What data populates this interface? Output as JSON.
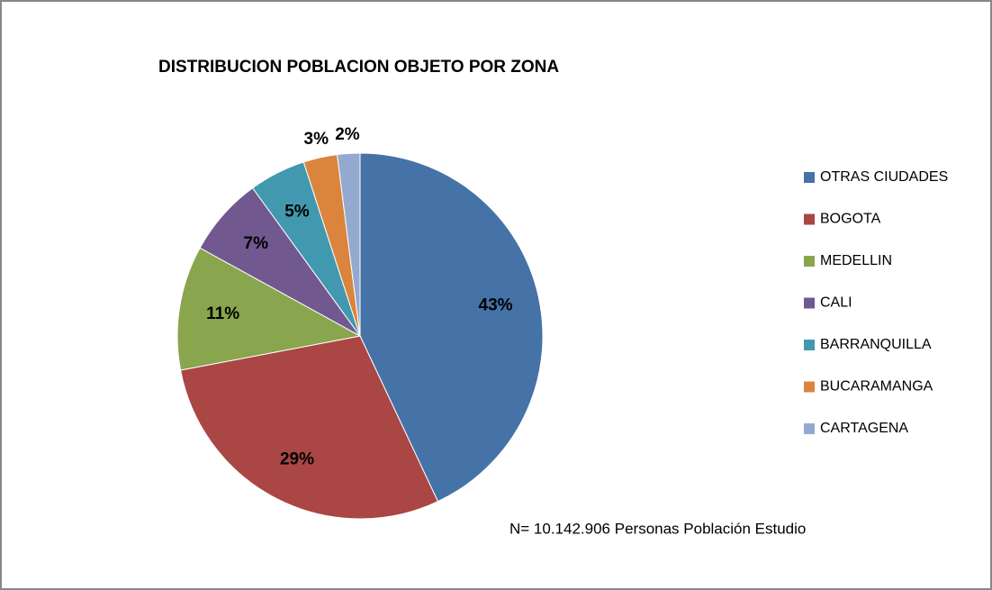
{
  "chart_data": {
    "type": "pie",
    "title": "DISTRIBUCION POBLACION OBJETO POR ZONA",
    "categories": [
      "OTRAS CIUDADES",
      "BOGOTA",
      "MEDELLIN",
      "CALI",
      "BARRANQUILLA",
      "BUCARAMANGA",
      "CARTAGENA"
    ],
    "values": [
      43,
      29,
      11,
      7,
      5,
      3,
      2
    ],
    "value_labels": [
      "43%",
      "29%",
      "11%",
      "7%",
      "5%",
      "3%",
      "2%"
    ],
    "colors": [
      "#4572a7",
      "#aa4643",
      "#89a54e",
      "#71588f",
      "#4198af",
      "#db843d",
      "#93a9cf"
    ],
    "legend": "right",
    "annotation": "N= 10.142.906 Personas Población Estudio"
  }
}
